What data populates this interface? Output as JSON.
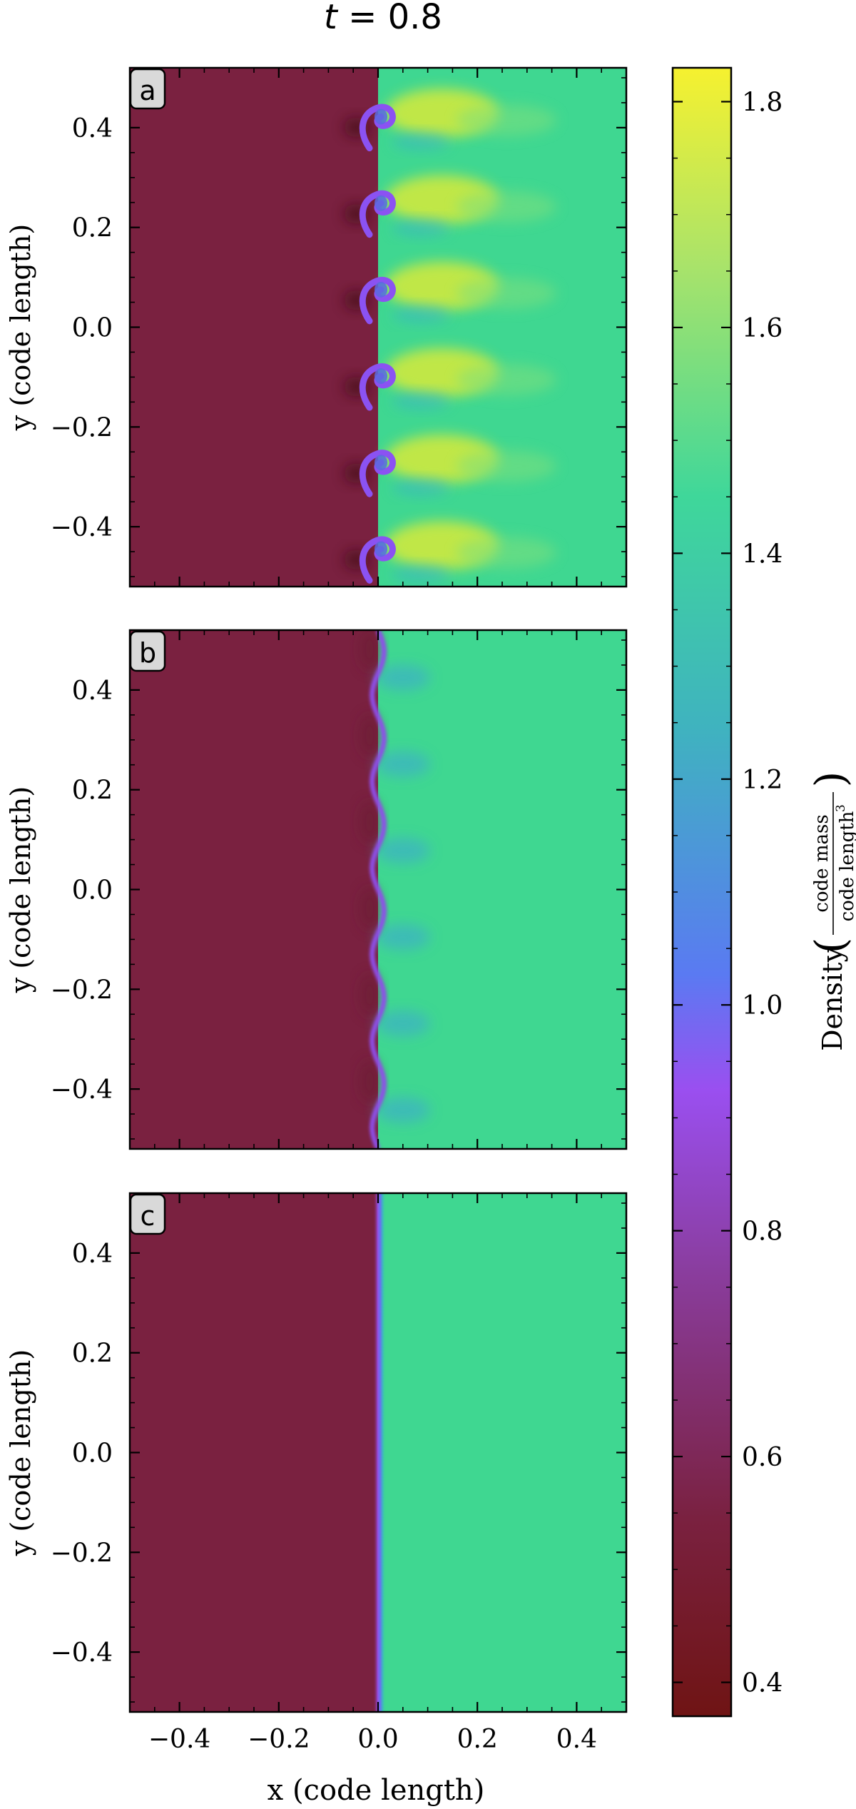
{
  "chart_data": {
    "type": "heatmap",
    "title": "t = 0.8",
    "title_parts": {
      "var": "t",
      "eq": " = ",
      "val": "0.8"
    },
    "xlabel": "x  (code length)",
    "ylabel": "y  (code length)",
    "xlim": [
      -0.5,
      0.5
    ],
    "ylim": [
      -0.52,
      0.52
    ],
    "x_ticks": [
      -0.4,
      -0.2,
      0.0,
      0.2,
      0.4
    ],
    "x_tick_labels": [
      "−0.4",
      "−0.2",
      "0.0",
      "0.2",
      "0.4"
    ],
    "y_ticks": [
      0.4,
      0.2,
      0.0,
      -0.2,
      -0.4
    ],
    "y_tick_labels": [
      "0.4",
      "0.2",
      "0.0",
      "−0.2",
      "−0.4"
    ],
    "panels": [
      {
        "label": "a",
        "interface_x": 0.0,
        "rolls": 6,
        "amplitude": 0.045,
        "state": "rolled-up Kelvin–Helmholtz vortices"
      },
      {
        "label": "b",
        "interface_x": 0.0,
        "rolls": 6,
        "amplitude": 0.012,
        "state": "weakly perturbed interface"
      },
      {
        "label": "c",
        "interface_x": 0.0,
        "rolls": 0,
        "amplitude": 0.0,
        "state": "flat interface"
      }
    ],
    "density_left": 0.5,
    "density_right": 1.45,
    "colorbar": {
      "label_main": "Density",
      "label_num": "code mass",
      "label_den": "code length",
      "label_den_exp": "3",
      "range": [
        0.37,
        1.83
      ],
      "ticks": [
        0.4,
        0.6,
        0.8,
        1.0,
        1.2,
        1.4,
        1.6,
        1.8
      ],
      "tick_labels": [
        "0.4",
        "0.6",
        "0.8",
        "1.0",
        "1.2",
        "1.4",
        "1.6",
        "1.8"
      ],
      "colormap": "plasma-like (dark red → purple → blue → teal → green → yellow)",
      "stops": [
        "#6f1414",
        "#7a2140",
        "#8a3d9e",
        "#9a4ff0",
        "#5a7af2",
        "#3fb3bf",
        "#3fd79a",
        "#a9e36a",
        "#f6f12f"
      ]
    }
  }
}
